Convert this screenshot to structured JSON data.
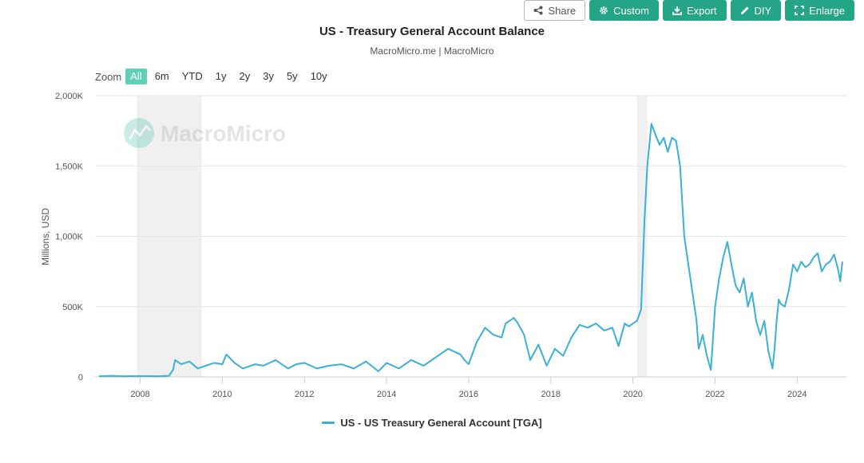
{
  "toolbar": {
    "share": "Share",
    "custom": "Custom",
    "export": "Export",
    "diy": "DIY",
    "enlarge": "Enlarge"
  },
  "zoom": {
    "label": "Zoom",
    "options": [
      "All",
      "6m",
      "YTD",
      "1y",
      "2y",
      "3y",
      "5y",
      "10y"
    ],
    "selected": "All"
  },
  "watermark": "MacroMicro",
  "colors": {
    "line": "#3ab0d7",
    "accent": "#25a587",
    "recession": "#f0f0f0"
  },
  "chart_data": {
    "type": "line",
    "title": "US - Treasury General Account Balance",
    "subtitle": "MacroMicro.me | MacroMicro",
    "ylabel": "Millions, USD",
    "xlabel": "",
    "ylim": [
      0,
      2000000
    ],
    "yticks": [
      0,
      500000,
      1000000,
      1500000,
      2000000
    ],
    "ytick_labels": [
      "0",
      "500K",
      "1,000K",
      "1,500K",
      "2,000K"
    ],
    "xlim": [
      2006.9,
      2025.2
    ],
    "xticks": [
      2008,
      2010,
      2012,
      2014,
      2016,
      2018,
      2020,
      2022,
      2024
    ],
    "xtick_labels": [
      "2008",
      "2010",
      "2012",
      "2014",
      "2016",
      "2018",
      "2020",
      "2022",
      "2024"
    ],
    "grid": true,
    "legend_position": "bottom-center",
    "recession_bands": [
      [
        2007.92,
        2009.5
      ],
      [
        2020.1,
        2020.35
      ]
    ],
    "series": [
      {
        "name": "US - US Treasury General Account [TGA]",
        "x": [
          2007.0,
          2007.3,
          2007.6,
          2008.0,
          2008.4,
          2008.7,
          2008.8,
          2008.85,
          2009.0,
          2009.2,
          2009.4,
          2009.6,
          2009.8,
          2010.0,
          2010.1,
          2010.3,
          2010.5,
          2010.8,
          2011.0,
          2011.3,
          2011.6,
          2011.8,
          2012.0,
          2012.3,
          2012.6,
          2012.9,
          2013.2,
          2013.5,
          2013.8,
          2014.0,
          2014.3,
          2014.6,
          2014.9,
          2015.2,
          2015.5,
          2015.8,
          2015.9,
          2016.0,
          2016.2,
          2016.4,
          2016.6,
          2016.8,
          2016.9,
          2017.1,
          2017.2,
          2017.35,
          2017.5,
          2017.7,
          2017.9,
          2018.1,
          2018.3,
          2018.5,
          2018.7,
          2018.9,
          2019.1,
          2019.3,
          2019.5,
          2019.65,
          2019.8,
          2019.9,
          2020.1,
          2020.2,
          2020.28,
          2020.35,
          2020.45,
          2020.55,
          2020.65,
          2020.75,
          2020.85,
          2020.95,
          2021.05,
          2021.15,
          2021.25,
          2021.35,
          2021.45,
          2021.55,
          2021.6,
          2021.7,
          2021.8,
          2021.9,
          2022.0,
          2022.1,
          2022.2,
          2022.3,
          2022.4,
          2022.5,
          2022.6,
          2022.7,
          2022.8,
          2022.9,
          2023.0,
          2023.1,
          2023.2,
          2023.3,
          2023.4,
          2023.45,
          2023.5,
          2023.55,
          2023.6,
          2023.7,
          2023.8,
          2023.9,
          2024.0,
          2024.1,
          2024.2,
          2024.3,
          2024.4,
          2024.5,
          2024.6,
          2024.7,
          2024.8,
          2024.9,
          2025.0,
          2025.05,
          2025.1
        ],
        "y": [
          5000,
          8000,
          5000,
          6000,
          5000,
          8000,
          50000,
          120000,
          90000,
          110000,
          60000,
          80000,
          100000,
          90000,
          160000,
          100000,
          60000,
          90000,
          80000,
          120000,
          60000,
          90000,
          100000,
          60000,
          80000,
          90000,
          60000,
          110000,
          40000,
          100000,
          60000,
          120000,
          80000,
          140000,
          200000,
          160000,
          120000,
          90000,
          250000,
          350000,
          300000,
          280000,
          380000,
          420000,
          380000,
          300000,
          120000,
          230000,
          80000,
          200000,
          150000,
          280000,
          370000,
          350000,
          380000,
          330000,
          350000,
          220000,
          380000,
          360000,
          400000,
          480000,
          1100000,
          1500000,
          1800000,
          1720000,
          1650000,
          1700000,
          1600000,
          1700000,
          1680000,
          1500000,
          1000000,
          800000,
          600000,
          400000,
          200000,
          300000,
          150000,
          50000,
          500000,
          700000,
          850000,
          960000,
          800000,
          650000,
          600000,
          700000,
          500000,
          600000,
          400000,
          300000,
          400000,
          180000,
          60000,
          200000,
          400000,
          550000,
          520000,
          500000,
          620000,
          800000,
          750000,
          820000,
          780000,
          800000,
          850000,
          880000,
          750000,
          800000,
          820000,
          870000,
          760000,
          680000,
          820000
        ]
      }
    ]
  }
}
